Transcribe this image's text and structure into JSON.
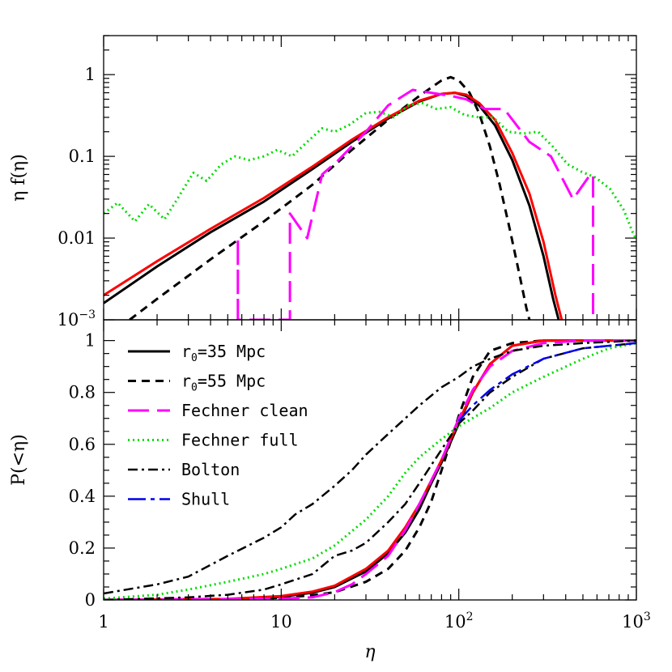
{
  "chart_data": [
    {
      "panel": "top",
      "type": "line",
      "xscale": "log",
      "yscale": "log",
      "xlim": [
        1,
        1000
      ],
      "ylim": [
        0.001,
        3
      ],
      "ylabel": "η f(η)",
      "yticks": [
        {
          "value": 0.001,
          "label": "10",
          "sup": "−3"
        },
        {
          "value": 0.01,
          "label": "0.01"
        },
        {
          "value": 0.1,
          "label": "0.1"
        },
        {
          "value": 1,
          "label": "1"
        }
      ],
      "series": [
        {
          "name": "r0=35 Mpc",
          "color": "#000000",
          "dash": "solid",
          "width": 3,
          "x": [
            1,
            2,
            4,
            8,
            15,
            25,
            40,
            60,
            80,
            95,
            110,
            130,
            160,
            200,
            250,
            300,
            340,
            365
          ],
          "y": [
            0.0016,
            0.0045,
            0.0118,
            0.028,
            0.07,
            0.15,
            0.29,
            0.47,
            0.58,
            0.6,
            0.55,
            0.42,
            0.24,
            0.09,
            0.025,
            0.006,
            0.0018,
            0.001
          ]
        },
        {
          "name": "r0=55 Mpc",
          "color": "#000000",
          "dash": "10,7",
          "width": 3,
          "x": [
            1.4,
            2,
            4,
            8,
            15,
            25,
            40,
            60,
            80,
            90,
            100,
            115,
            130,
            150,
            170,
            195,
            220,
            240,
            250
          ],
          "y": [
            0.001,
            0.0018,
            0.0055,
            0.016,
            0.045,
            0.12,
            0.28,
            0.55,
            0.85,
            0.93,
            0.85,
            0.6,
            0.34,
            0.13,
            0.045,
            0.012,
            0.0035,
            0.0014,
            0.001
          ]
        },
        {
          "name": "red model",
          "color": "#ff0000",
          "dash": "solid",
          "width": 3,
          "x": [
            1,
            2,
            4,
            8,
            15,
            25,
            40,
            60,
            80,
            95,
            110,
            130,
            160,
            200,
            250,
            300,
            350,
            380
          ],
          "y": [
            0.002,
            0.0052,
            0.013,
            0.031,
            0.075,
            0.16,
            0.3,
            0.48,
            0.58,
            0.6,
            0.57,
            0.45,
            0.28,
            0.11,
            0.035,
            0.009,
            0.002,
            0.001
          ]
        },
        {
          "name": "Fechner clean",
          "color": "#ff00ff",
          "dash": "26,10",
          "width": 3,
          "x": [
            5.7,
            5.7,
            5.7,
            11.2,
            11.2,
            11.2,
            14,
            17,
            21,
            30,
            40,
            55,
            70,
            90,
            110,
            140,
            180,
            250,
            330,
            440,
            550,
            570,
            570
          ],
          "y": [
            0.001,
            0.01,
            0.001,
            0.001,
            0.02,
            0.02,
            0.01,
            0.06,
            0.09,
            0.2,
            0.42,
            0.65,
            0.6,
            0.55,
            0.5,
            0.38,
            0.38,
            0.15,
            0.1,
            0.03,
            0.06,
            0.06,
            0.001
          ]
        },
        {
          "name": "Fechner full",
          "color": "#00dd00",
          "dash": "2,4",
          "width": 3,
          "x": [
            1,
            1.2,
            1.5,
            1.8,
            2.2,
            2.6,
            3.2,
            3.8,
            4.6,
            5.5,
            6.6,
            8,
            9.5,
            11.5,
            14,
            17,
            20,
            24,
            30,
            36,
            43,
            52,
            62,
            75,
            90,
            108,
            130,
            156,
            190,
            230,
            280,
            340,
            410,
            490,
            590,
            710,
            850,
            950,
            990
          ],
          "y": [
            0.02,
            0.027,
            0.016,
            0.026,
            0.017,
            0.03,
            0.063,
            0.05,
            0.08,
            0.1,
            0.09,
            0.1,
            0.12,
            0.1,
            0.15,
            0.22,
            0.2,
            0.24,
            0.34,
            0.35,
            0.3,
            0.42,
            0.45,
            0.38,
            0.4,
            0.32,
            0.3,
            0.3,
            0.2,
            0.19,
            0.2,
            0.13,
            0.08,
            0.065,
            0.055,
            0.04,
            0.022,
            0.012,
            0.01
          ]
        }
      ]
    },
    {
      "panel": "bottom",
      "type": "line",
      "xscale": "log",
      "yscale": "linear",
      "xlim": [
        1,
        1000
      ],
      "ylim": [
        0,
        1.08
      ],
      "xlabel": "η",
      "ylabel": "P(<η)",
      "xticks": [
        {
          "value": 1,
          "label": "1"
        },
        {
          "value": 10,
          "label": "10"
        },
        {
          "value": 100,
          "label": "10",
          "sup": "2"
        },
        {
          "value": 1000,
          "label": "10",
          "sup": "3"
        }
      ],
      "yticks": [
        {
          "value": 0,
          "label": "0"
        },
        {
          "value": 0.2,
          "label": "0.2"
        },
        {
          "value": 0.4,
          "label": "0.4"
        },
        {
          "value": 0.6,
          "label": "0.6"
        },
        {
          "value": 0.8,
          "label": "0.8"
        },
        {
          "value": 1,
          "label": "1"
        }
      ],
      "series": [
        {
          "name": "r0=35 Mpc",
          "color": "#000000",
          "dash": "solid",
          "width": 3,
          "x": [
            1,
            5,
            10,
            15,
            20,
            30,
            40,
            50,
            60,
            70,
            80,
            100,
            120,
            150,
            200,
            300,
            500,
            1000
          ],
          "y": [
            0,
            0.003,
            0.012,
            0.028,
            0.05,
            0.11,
            0.18,
            0.26,
            0.35,
            0.45,
            0.53,
            0.68,
            0.8,
            0.91,
            0.98,
            1,
            1,
            1
          ]
        },
        {
          "name": "r0=55 Mpc",
          "color": "#000000",
          "dash": "10,7",
          "width": 3,
          "x": [
            1,
            5,
            10,
            15,
            20,
            30,
            40,
            50,
            60,
            70,
            80,
            90,
            100,
            120,
            150,
            200,
            300,
            1000
          ],
          "y": [
            0,
            0.002,
            0.008,
            0.018,
            0.03,
            0.07,
            0.12,
            0.19,
            0.28,
            0.38,
            0.5,
            0.61,
            0.71,
            0.86,
            0.96,
            0.99,
            1,
            1
          ]
        },
        {
          "name": "red model",
          "color": "#ff0000",
          "dash": "solid",
          "width": 3,
          "x": [
            1,
            5,
            10,
            15,
            20,
            30,
            40,
            50,
            60,
            70,
            80,
            100,
            120,
            150,
            200,
            300,
            500,
            1000
          ],
          "y": [
            0,
            0.004,
            0.015,
            0.032,
            0.055,
            0.12,
            0.19,
            0.28,
            0.37,
            0.46,
            0.54,
            0.69,
            0.8,
            0.91,
            0.98,
            1,
            1,
            1
          ]
        },
        {
          "name": "Fechner clean",
          "color": "#ff00ff",
          "dash": "26,10",
          "width": 3,
          "x": [
            1,
            10,
            15,
            20,
            25,
            30,
            40,
            50,
            60,
            70,
            80,
            100,
            120,
            150,
            200,
            300,
            500,
            570,
            1000
          ],
          "y": [
            0,
            0.005,
            0.01,
            0.03,
            0.06,
            0.1,
            0.17,
            0.27,
            0.37,
            0.46,
            0.54,
            0.7,
            0.81,
            0.9,
            0.96,
            0.99,
            1,
            1,
            1
          ]
        },
        {
          "name": "Fechner full",
          "color": "#00dd00",
          "dash": "2,4",
          "width": 3,
          "x": [
            1,
            2,
            3,
            5,
            8,
            10,
            15,
            20,
            30,
            40,
            50,
            60,
            80,
            100,
            150,
            200,
            300,
            500,
            700,
            1000
          ],
          "y": [
            0.005,
            0.02,
            0.04,
            0.07,
            0.1,
            0.12,
            0.16,
            0.21,
            0.31,
            0.4,
            0.49,
            0.55,
            0.62,
            0.67,
            0.74,
            0.8,
            0.86,
            0.93,
            0.97,
            0.99
          ]
        },
        {
          "name": "Bolton",
          "color": "#000000",
          "dash": "12,5,3,5",
          "width": 2.5,
          "x": [
            1,
            2,
            3,
            5,
            8,
            10,
            12,
            15,
            20,
            25,
            30,
            40,
            50,
            60,
            80,
            100,
            120,
            150,
            200,
            300,
            500,
            1000
          ],
          "y": [
            0.025,
            0.06,
            0.09,
            0.17,
            0.24,
            0.28,
            0.33,
            0.37,
            0.44,
            0.5,
            0.56,
            0.64,
            0.7,
            0.75,
            0.82,
            0.86,
            0.9,
            0.93,
            0.96,
            0.98,
            0.99,
            1
          ]
        },
        {
          "name": "Bolton",
          "color": "#000000",
          "dash": "12,5,3,5",
          "width": 2.5,
          "x": [
            1,
            3,
            5,
            8,
            10,
            15,
            20,
            25,
            30,
            40,
            50,
            60,
            80,
            100,
            120,
            150,
            200,
            300,
            500,
            1000
          ],
          "y": [
            0,
            0.01,
            0.02,
            0.04,
            0.06,
            0.1,
            0.17,
            0.19,
            0.22,
            0.3,
            0.37,
            0.45,
            0.58,
            0.68,
            0.73,
            0.8,
            0.86,
            0.93,
            0.97,
            0.99
          ]
        },
        {
          "name": "Shull",
          "color": "#0000ee",
          "dash": "22,6,5,6",
          "width": 2.5,
          "x": [
            100,
            120,
            150,
            200,
            300,
            500,
            1000
          ],
          "y": [
            0.69,
            0.75,
            0.81,
            0.87,
            0.93,
            0.97,
            0.99
          ]
        }
      ],
      "legend": [
        {
          "pre": "r",
          "sub": "0",
          "post": "=35 Mpc",
          "color": "#000000",
          "dash": "solid",
          "width": 3
        },
        {
          "pre": "r",
          "sub": "0",
          "post": "=55 Mpc",
          "color": "#000000",
          "dash": "10,7",
          "width": 3
        },
        {
          "pre": "Fechner clean",
          "sub": "",
          "post": "",
          "color": "#ff00ff",
          "dash": "26,10",
          "width": 3
        },
        {
          "pre": "Fechner full",
          "sub": "",
          "post": "",
          "color": "#00dd00",
          "dash": "2,4",
          "width": 3
        },
        {
          "pre": "Bolton",
          "sub": "",
          "post": "",
          "color": "#000000",
          "dash": "12,5,3,5",
          "width": 2.5
        },
        {
          "pre": "Shull",
          "sub": "",
          "post": "",
          "color": "#0000ee",
          "dash": "22,6,5,6",
          "width": 2.5
        }
      ],
      "legend_position": "top-left"
    }
  ]
}
